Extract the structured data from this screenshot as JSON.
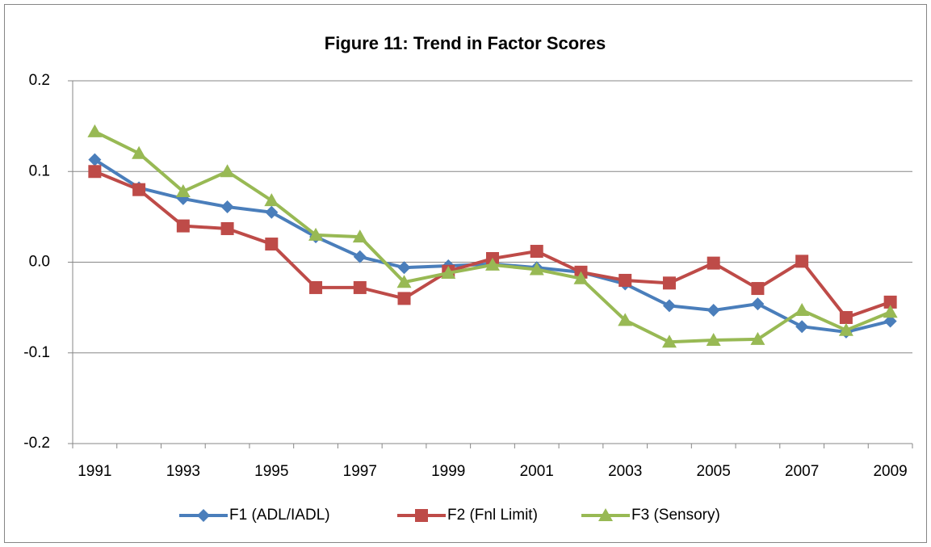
{
  "chart_data": {
    "type": "line",
    "title": "Figure 11: Trend in Factor Scores",
    "categories": [
      "1991",
      null,
      "1993",
      null,
      "1995",
      null,
      "1997",
      null,
      "1999",
      null,
      "2001",
      null,
      "2003",
      null,
      "2005",
      null,
      "2007",
      null,
      "2009"
    ],
    "series": [
      {
        "name": "F1 (ADL/IADL)",
        "color": "#4a7ebb",
        "marker": "diamond",
        "values": [
          0.113,
          0.082,
          0.07,
          0.061,
          0.055,
          0.028,
          0.006,
          -0.006,
          -0.004,
          -0.002,
          -0.006,
          -0.011,
          -0.024,
          -0.048,
          -0.053,
          -0.046,
          -0.071,
          -0.077,
          -0.065
        ]
      },
      {
        "name": "F2 (Fnl Limit)",
        "color": "#be4b48",
        "marker": "square",
        "values": [
          0.1,
          0.08,
          0.04,
          0.037,
          0.02,
          -0.028,
          -0.028,
          -0.04,
          -0.01,
          0.004,
          0.012,
          -0.011,
          -0.02,
          -0.023,
          -0.001,
          -0.029,
          0.001,
          -0.061,
          -0.044
        ]
      },
      {
        "name": "F3 (Sensory)",
        "color": "#98b954",
        "marker": "triangle",
        "values": [
          0.144,
          0.12,
          0.078,
          0.1,
          0.068,
          0.03,
          0.028,
          -0.022,
          -0.012,
          -0.003,
          -0.008,
          -0.018,
          -0.064,
          -0.088,
          -0.086,
          -0.085,
          -0.053,
          -0.075,
          -0.055
        ]
      }
    ],
    "ylim": [
      -0.2,
      0.2
    ],
    "yticks": [
      -0.2,
      -0.1,
      {
        "value": 0,
        "label": "0.0"
      },
      0.1,
      0.2
    ],
    "grid": true,
    "legend": "bottom"
  }
}
